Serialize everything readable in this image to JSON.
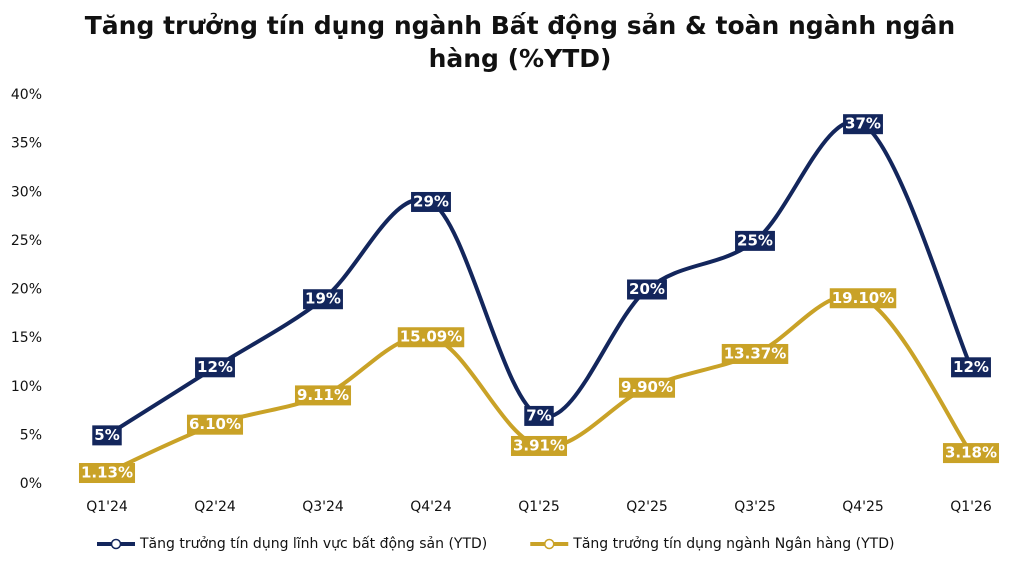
{
  "chart_data": {
    "type": "line",
    "title": "Tăng trưởng tín dụng ngành Bất động sản & toàn ngành ngân hàng (%YTD)",
    "categories": [
      "Q1'24",
      "Q2'24",
      "Q3'24",
      "Q4'24",
      "Q1'25",
      "Q2'25",
      "Q3'25",
      "Q4'25",
      "Q1'26"
    ],
    "series": [
      {
        "name": "Tăng trưởng tín dụng lĩnh vực bất động sản (YTD)",
        "color": "#13265c",
        "values": [
          5,
          12,
          19,
          29,
          7,
          20,
          25,
          37,
          12
        ],
        "value_labels": [
          "5%",
          "12%",
          "19%",
          "29%",
          "7%",
          "20%",
          "25%",
          "37%",
          "12%"
        ]
      },
      {
        "name": "Tăng trưởng tín dụng ngành Ngân hàng (YTD)",
        "color": "#c9a227",
        "values": [
          1.13,
          6.1,
          9.11,
          15.09,
          3.91,
          9.9,
          13.37,
          19.1,
          3.18
        ],
        "value_labels": [
          "1.13%",
          "6.10%",
          "9.11%",
          "15.09%",
          "3.91%",
          "9.90%",
          "13.37%",
          "19.10%",
          "3.18%"
        ]
      }
    ],
    "ylim": [
      0,
      40
    ],
    "yticks": [
      {
        "value": 0,
        "label": "0%"
      },
      {
        "value": 5,
        "label": "5%"
      },
      {
        "value": 10,
        "label": "10%"
      },
      {
        "value": 15,
        "label": "15%"
      },
      {
        "value": 20,
        "label": "20%"
      },
      {
        "value": 25,
        "label": "25%"
      },
      {
        "value": 30,
        "label": "30%"
      },
      {
        "value": 35,
        "label": "35%"
      },
      {
        "value": 40,
        "label": "40%"
      }
    ],
    "grid": false,
    "smooth": true,
    "legend": "bottom"
  }
}
